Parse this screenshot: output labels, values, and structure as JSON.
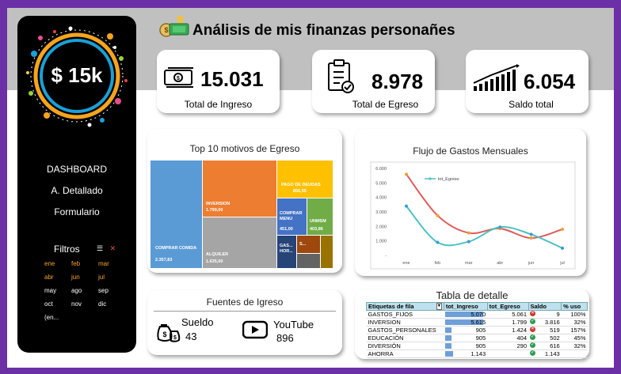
{
  "header": {
    "title": "Análisis de mis finanzas personañes"
  },
  "sidebar": {
    "amount": "$ 15k",
    "nav": [
      {
        "label": "DASHBOARD"
      },
      {
        "label": "A. Detallado"
      },
      {
        "label": "Formulario"
      }
    ],
    "filters_title": "Filtros",
    "months": [
      "ene",
      "feb",
      "mar",
      "abr",
      "jun",
      "jul",
      "may",
      "ago",
      "sep",
      "oct",
      "nov",
      "dic",
      "(en..."
    ]
  },
  "kpis": [
    {
      "value": "15.031",
      "label": "Total de Ingreso",
      "icon": "cash-icon"
    },
    {
      "value": "8.978",
      "label": "Total de Egreso",
      "icon": "clipboard-check-icon"
    },
    {
      "value": "6.054",
      "label": "Saldo total",
      "icon": "growth-chart-icon"
    }
  ],
  "treemap": {
    "title": "Top 10 motivos de Egreso",
    "items": [
      {
        "label": "COMPRAR COMIDA",
        "value": "2.357,83",
        "color": "#5b9bd5"
      },
      {
        "label": "INVERSION",
        "value": "1.799,00",
        "color": "#ed7d31"
      },
      {
        "label": "ALQUILER",
        "value": "1.635,00",
        "color": "#a5a5a5"
      },
      {
        "label": "PAGO DE DEUDAS",
        "value": "856,95",
        "color": "#ffc000"
      },
      {
        "label": "COMPRAR MENU",
        "value": "451,00",
        "color": "#4472c4"
      },
      {
        "label": "UNMSM",
        "value": "403,86",
        "color": "#70ad47"
      },
      {
        "label": "GAS... HOR...",
        "value": "",
        "color": "#264478"
      },
      {
        "label": "S...",
        "value": "",
        "color": "#9e480e"
      },
      {
        "label": "",
        "value": "",
        "color": "#636363"
      },
      {
        "label": "",
        "value": "",
        "color": "#997300"
      }
    ]
  },
  "chart_data": {
    "type": "line",
    "title": "Flujo de Gastos Mensuales",
    "categories": [
      "ene",
      "feb",
      "mar",
      "abr",
      "jun",
      "jul"
    ],
    "yticks": [
      "6.000",
      "5.000",
      "4.000",
      "3.000",
      "2.000",
      "1.000",
      "-"
    ],
    "ylim": [
      0,
      6000
    ],
    "series": [
      {
        "name": "",
        "color": "#e05a5a",
        "values": [
          5600,
          2750,
          1550,
          1850,
          1200,
          1800
        ]
      },
      {
        "name": "tot_Egreso",
        "color": "#4cc1c1",
        "values": [
          3400,
          900,
          950,
          1950,
          1450,
          500
        ]
      }
    ],
    "legend": "top-left"
  },
  "sources": {
    "title": "Fuentes de Igreso",
    "items": [
      {
        "name": "Sueldo",
        "value": "43",
        "icon": "money-bags-icon"
      },
      {
        "name": "YouTube",
        "value": "896",
        "icon": "youtube-icon"
      }
    ]
  },
  "detail_table": {
    "title": "Tabla de detalle",
    "headers": [
      "Etiquetas de fila",
      "tot_Ingreso",
      "tot_Egreso",
      "Saldo",
      "% uso"
    ],
    "rows": [
      {
        "label": "GASTOS_FIJOS",
        "ingreso": "5.070",
        "egreso": "5.061",
        "saldo": "9",
        "uso": "100%",
        "status": "bad",
        "bar": 100
      },
      {
        "label": "INVERSION",
        "ingreso": "5.615",
        "egreso": "1.799",
        "saldo": "3.816",
        "uso": "32%",
        "status": "ok",
        "bar": 100
      },
      {
        "label": "GASTOS_PERSONALES",
        "ingreso": "905",
        "egreso": "1.424",
        "saldo": "519",
        "uso": "157%",
        "status": "bad",
        "bar": 16
      },
      {
        "label": "EDUCACIÓN",
        "ingreso": "905",
        "egreso": "404",
        "saldo": "502",
        "uso": "45%",
        "status": "ok",
        "bar": 16
      },
      {
        "label": "DIVERSIÓN",
        "ingreso": "905",
        "egreso": "290",
        "saldo": "616",
        "uso": "32%",
        "status": "ok",
        "bar": 16
      },
      {
        "label": "AHORRA",
        "ingreso": "1.143",
        "egreso": "",
        "saldo": "1.143",
        "uso": "",
        "status": "ok",
        "bar": 20
      }
    ]
  }
}
